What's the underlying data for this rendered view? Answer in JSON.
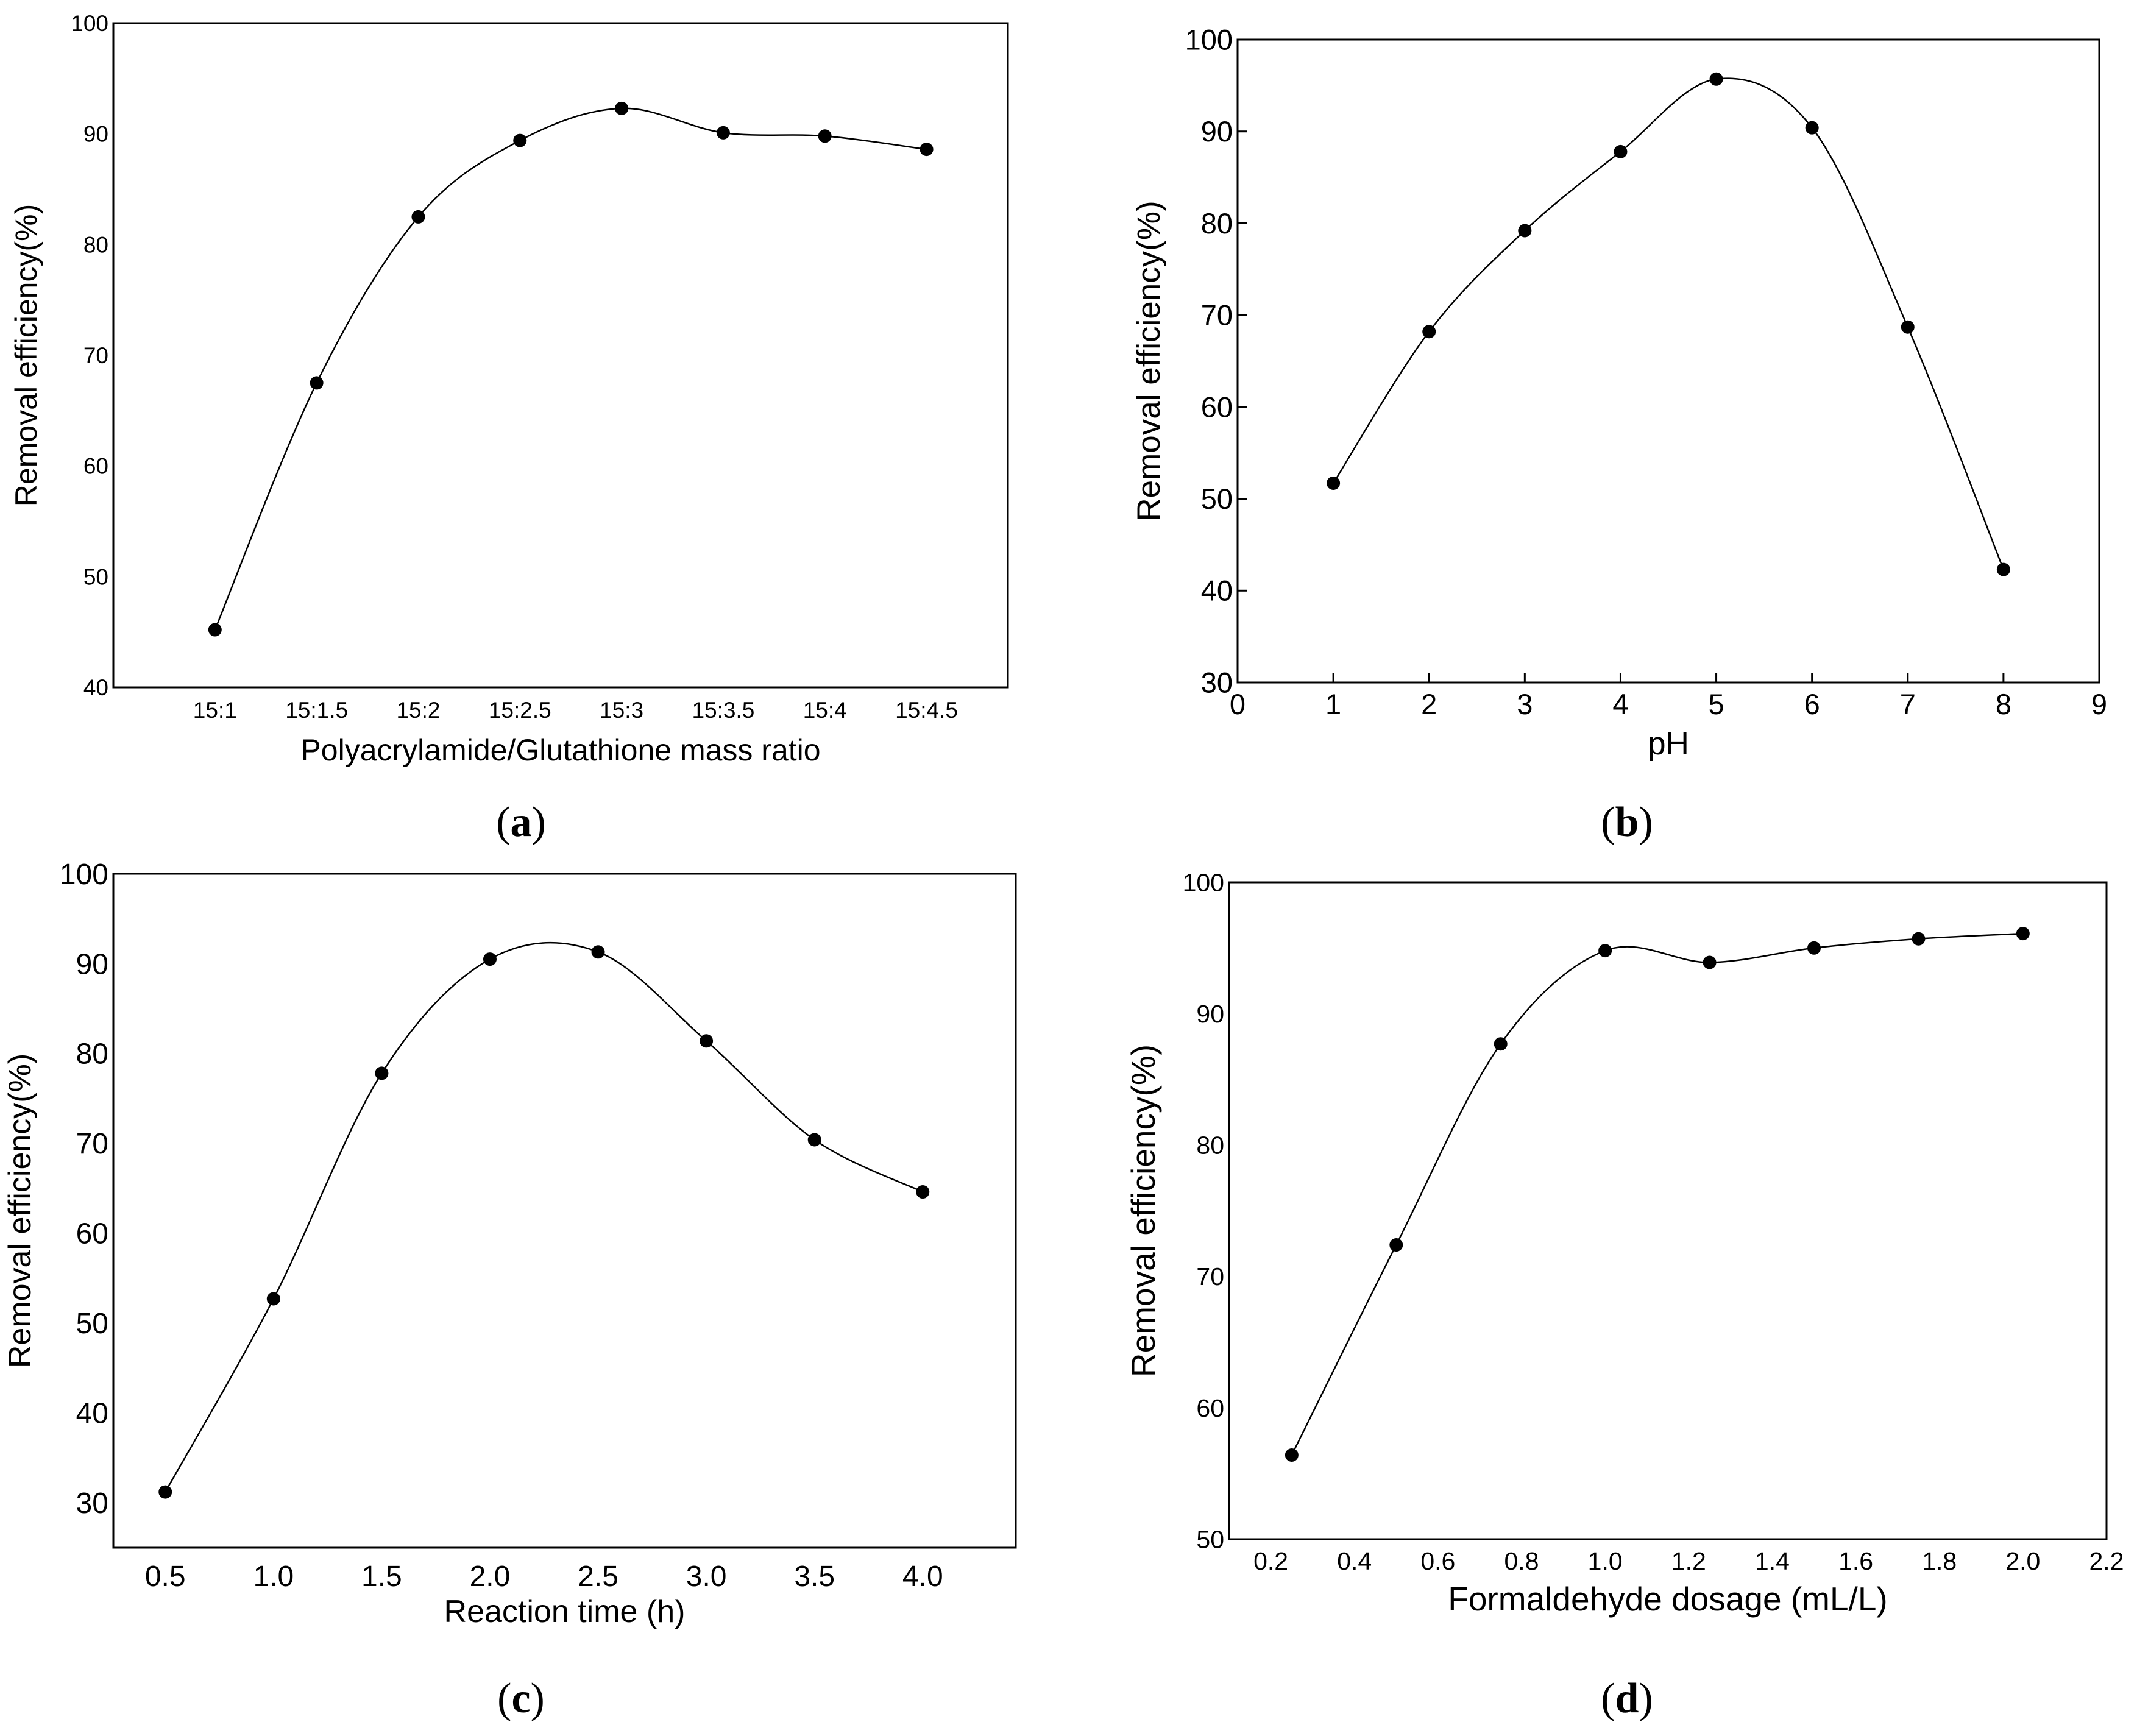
{
  "colors": {
    "line": "#000000",
    "marker": "#000000",
    "background": "#ffffff"
  },
  "chart_data": [
    {
      "id": "a",
      "caption": {
        "open": "(",
        "letter": "a",
        "close": ")"
      },
      "type": "line",
      "title": "",
      "xlabel": "Polyacrylamide/Glutathione mass ratio",
      "ylabel": "Removal efficiency(%)",
      "xlim": [
        0,
        8.8
      ],
      "ylim": [
        40,
        100
      ],
      "xticks": [
        {
          "v": 1,
          "label": "15:1"
        },
        {
          "v": 2,
          "label": "15:1.5"
        },
        {
          "v": 3,
          "label": "15:2"
        },
        {
          "v": 4,
          "label": "15:2.5"
        },
        {
          "v": 5,
          "label": "15:3"
        },
        {
          "v": 6,
          "label": "15:3.5"
        },
        {
          "v": 7,
          "label": "15:4"
        },
        {
          "v": 8,
          "label": "15:4.5"
        }
      ],
      "yticks": [
        {
          "v": 40,
          "label": "40"
        },
        {
          "v": 50,
          "label": "50"
        },
        {
          "v": 60,
          "label": "60"
        },
        {
          "v": 70,
          "label": "70"
        },
        {
          "v": 80,
          "label": "80"
        },
        {
          "v": 90,
          "label": "90"
        },
        {
          "v": 100,
          "label": "100"
        }
      ],
      "x": [
        1,
        2,
        3,
        4,
        5,
        6,
        7,
        8
      ],
      "y": [
        45.2,
        67.5,
        82.5,
        89.4,
        92.3,
        90.1,
        89.8,
        88.6
      ],
      "grid": false,
      "legend": "none"
    },
    {
      "id": "b",
      "caption": {
        "open": "(",
        "letter": "b",
        "close": ")"
      },
      "type": "line",
      "title": "",
      "xlabel": "pH",
      "ylabel": "Removal efficiency(%)",
      "xlim": [
        0,
        9
      ],
      "ylim": [
        30,
        100
      ],
      "xticks": [
        {
          "v": 0,
          "label": "0"
        },
        {
          "v": 1,
          "label": "1"
        },
        {
          "v": 2,
          "label": "2"
        },
        {
          "v": 3,
          "label": "3"
        },
        {
          "v": 4,
          "label": "4"
        },
        {
          "v": 5,
          "label": "5"
        },
        {
          "v": 6,
          "label": "6"
        },
        {
          "v": 7,
          "label": "7"
        },
        {
          "v": 8,
          "label": "8"
        },
        {
          "v": 9,
          "label": "9"
        }
      ],
      "yticks": [
        {
          "v": 30,
          "label": "30"
        },
        {
          "v": 40,
          "label": "40"
        },
        {
          "v": 50,
          "label": "50"
        },
        {
          "v": 60,
          "label": "60"
        },
        {
          "v": 70,
          "label": "70"
        },
        {
          "v": 80,
          "label": "80"
        },
        {
          "v": 90,
          "label": "90"
        },
        {
          "v": 100,
          "label": "100"
        }
      ],
      "x": [
        1,
        2,
        3,
        4,
        5,
        6,
        7,
        8
      ],
      "y": [
        51.7,
        68.2,
        79.2,
        87.8,
        95.7,
        90.4,
        68.7,
        42.3
      ],
      "grid": false,
      "legend": "none"
    },
    {
      "id": "c",
      "caption": {
        "open": "(",
        "letter": "c",
        "close": ")"
      },
      "type": "line",
      "title": "",
      "xlabel": "Reaction time (h)",
      "ylabel": "Removal efficiency(%)",
      "xlim": [
        0.26,
        4.43
      ],
      "ylim": [
        25,
        100
      ],
      "xticks": [
        {
          "v": 0.5,
          "label": "0.5"
        },
        {
          "v": 1.0,
          "label": "1.0"
        },
        {
          "v": 1.5,
          "label": "1.5"
        },
        {
          "v": 2.0,
          "label": "2.0"
        },
        {
          "v": 2.5,
          "label": "2.5"
        },
        {
          "v": 3.0,
          "label": "3.0"
        },
        {
          "v": 3.5,
          "label": "3.5"
        },
        {
          "v": 4.0,
          "label": "4.0"
        }
      ],
      "yticks": [
        {
          "v": 30,
          "label": "30"
        },
        {
          "v": 40,
          "label": "40"
        },
        {
          "v": 50,
          "label": "50"
        },
        {
          "v": 60,
          "label": "60"
        },
        {
          "v": 70,
          "label": "70"
        },
        {
          "v": 80,
          "label": "80"
        },
        {
          "v": 90,
          "label": "90"
        },
        {
          "v": 100,
          "label": "100"
        }
      ],
      "x": [
        0.5,
        1.0,
        1.5,
        2.0,
        2.5,
        3.0,
        3.5,
        4.0
      ],
      "y": [
        31.2,
        52.7,
        77.8,
        90.5,
        91.3,
        81.4,
        70.4,
        64.6
      ],
      "grid": false,
      "legend": "none"
    },
    {
      "id": "d",
      "caption": {
        "open": "(",
        "letter": "d",
        "close": ")"
      },
      "type": "line",
      "title": "",
      "xlabel": "Formaldehyde dosage (mL/L)",
      "ylabel": "Removal efficiency(%)",
      "xlim": [
        0.1,
        2.2
      ],
      "ylim": [
        50,
        100
      ],
      "xticks": [
        {
          "v": 0.2,
          "label": "0.2"
        },
        {
          "v": 0.4,
          "label": "0.4"
        },
        {
          "v": 0.6,
          "label": "0.6"
        },
        {
          "v": 0.8,
          "label": "0.8"
        },
        {
          "v": 1.0,
          "label": "1.0"
        },
        {
          "v": 1.2,
          "label": "1.2"
        },
        {
          "v": 1.4,
          "label": "1.4"
        },
        {
          "v": 1.6,
          "label": "1.6"
        },
        {
          "v": 1.8,
          "label": "1.8"
        },
        {
          "v": 2.0,
          "label": "2.0"
        },
        {
          "v": 2.2,
          "label": "2.2"
        }
      ],
      "yticks": [
        {
          "v": 50,
          "label": "50"
        },
        {
          "v": 60,
          "label": "60"
        },
        {
          "v": 70,
          "label": "70"
        },
        {
          "v": 80,
          "label": "80"
        },
        {
          "v": 90,
          "label": "90"
        },
        {
          "v": 100,
          "label": "100"
        }
      ],
      "x": [
        0.25,
        0.5,
        0.75,
        1.0,
        1.25,
        1.5,
        1.75,
        2.0
      ],
      "y": [
        56.4,
        72.4,
        87.7,
        94.8,
        93.9,
        95.0,
        95.7,
        96.1
      ],
      "grid": false,
      "legend": "none"
    }
  ]
}
